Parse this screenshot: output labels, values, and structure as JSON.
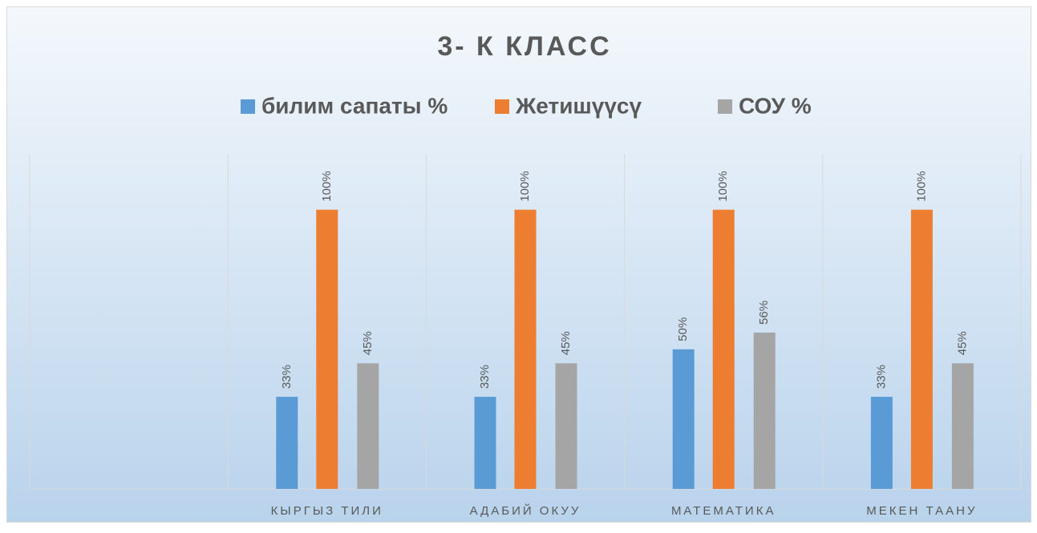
{
  "chart_data": {
    "type": "bar",
    "title": "3- К КЛАСС",
    "categories": [
      null,
      "КЫРГЫЗ ТИЛИ",
      "АДАБИЙ ОКУУ",
      "МАТЕМАТИКА",
      "МЕКЕН ТААНУ"
    ],
    "series": [
      {
        "name": "билим сапаты %",
        "color": "#5b9bd5",
        "values": [
          null,
          33,
          33,
          50,
          33
        ],
        "value_labels": [
          null,
          "33%",
          "33%",
          "50%",
          "33%"
        ]
      },
      {
        "name": "Жетишүүсү",
        "color": "#ed7d31",
        "values": [
          null,
          100,
          100,
          100,
          100
        ],
        "value_labels": [
          null,
          "100%",
          "100%",
          "100%",
          "100%"
        ]
      },
      {
        "name": "СОУ %",
        "color": "#a5a5a5",
        "values": [
          null,
          45,
          45,
          56,
          45
        ],
        "value_labels": [
          null,
          "45%",
          "45%",
          "56%",
          "45%"
        ]
      }
    ],
    "ylim": [
      0,
      120
    ],
    "legend": "top"
  }
}
